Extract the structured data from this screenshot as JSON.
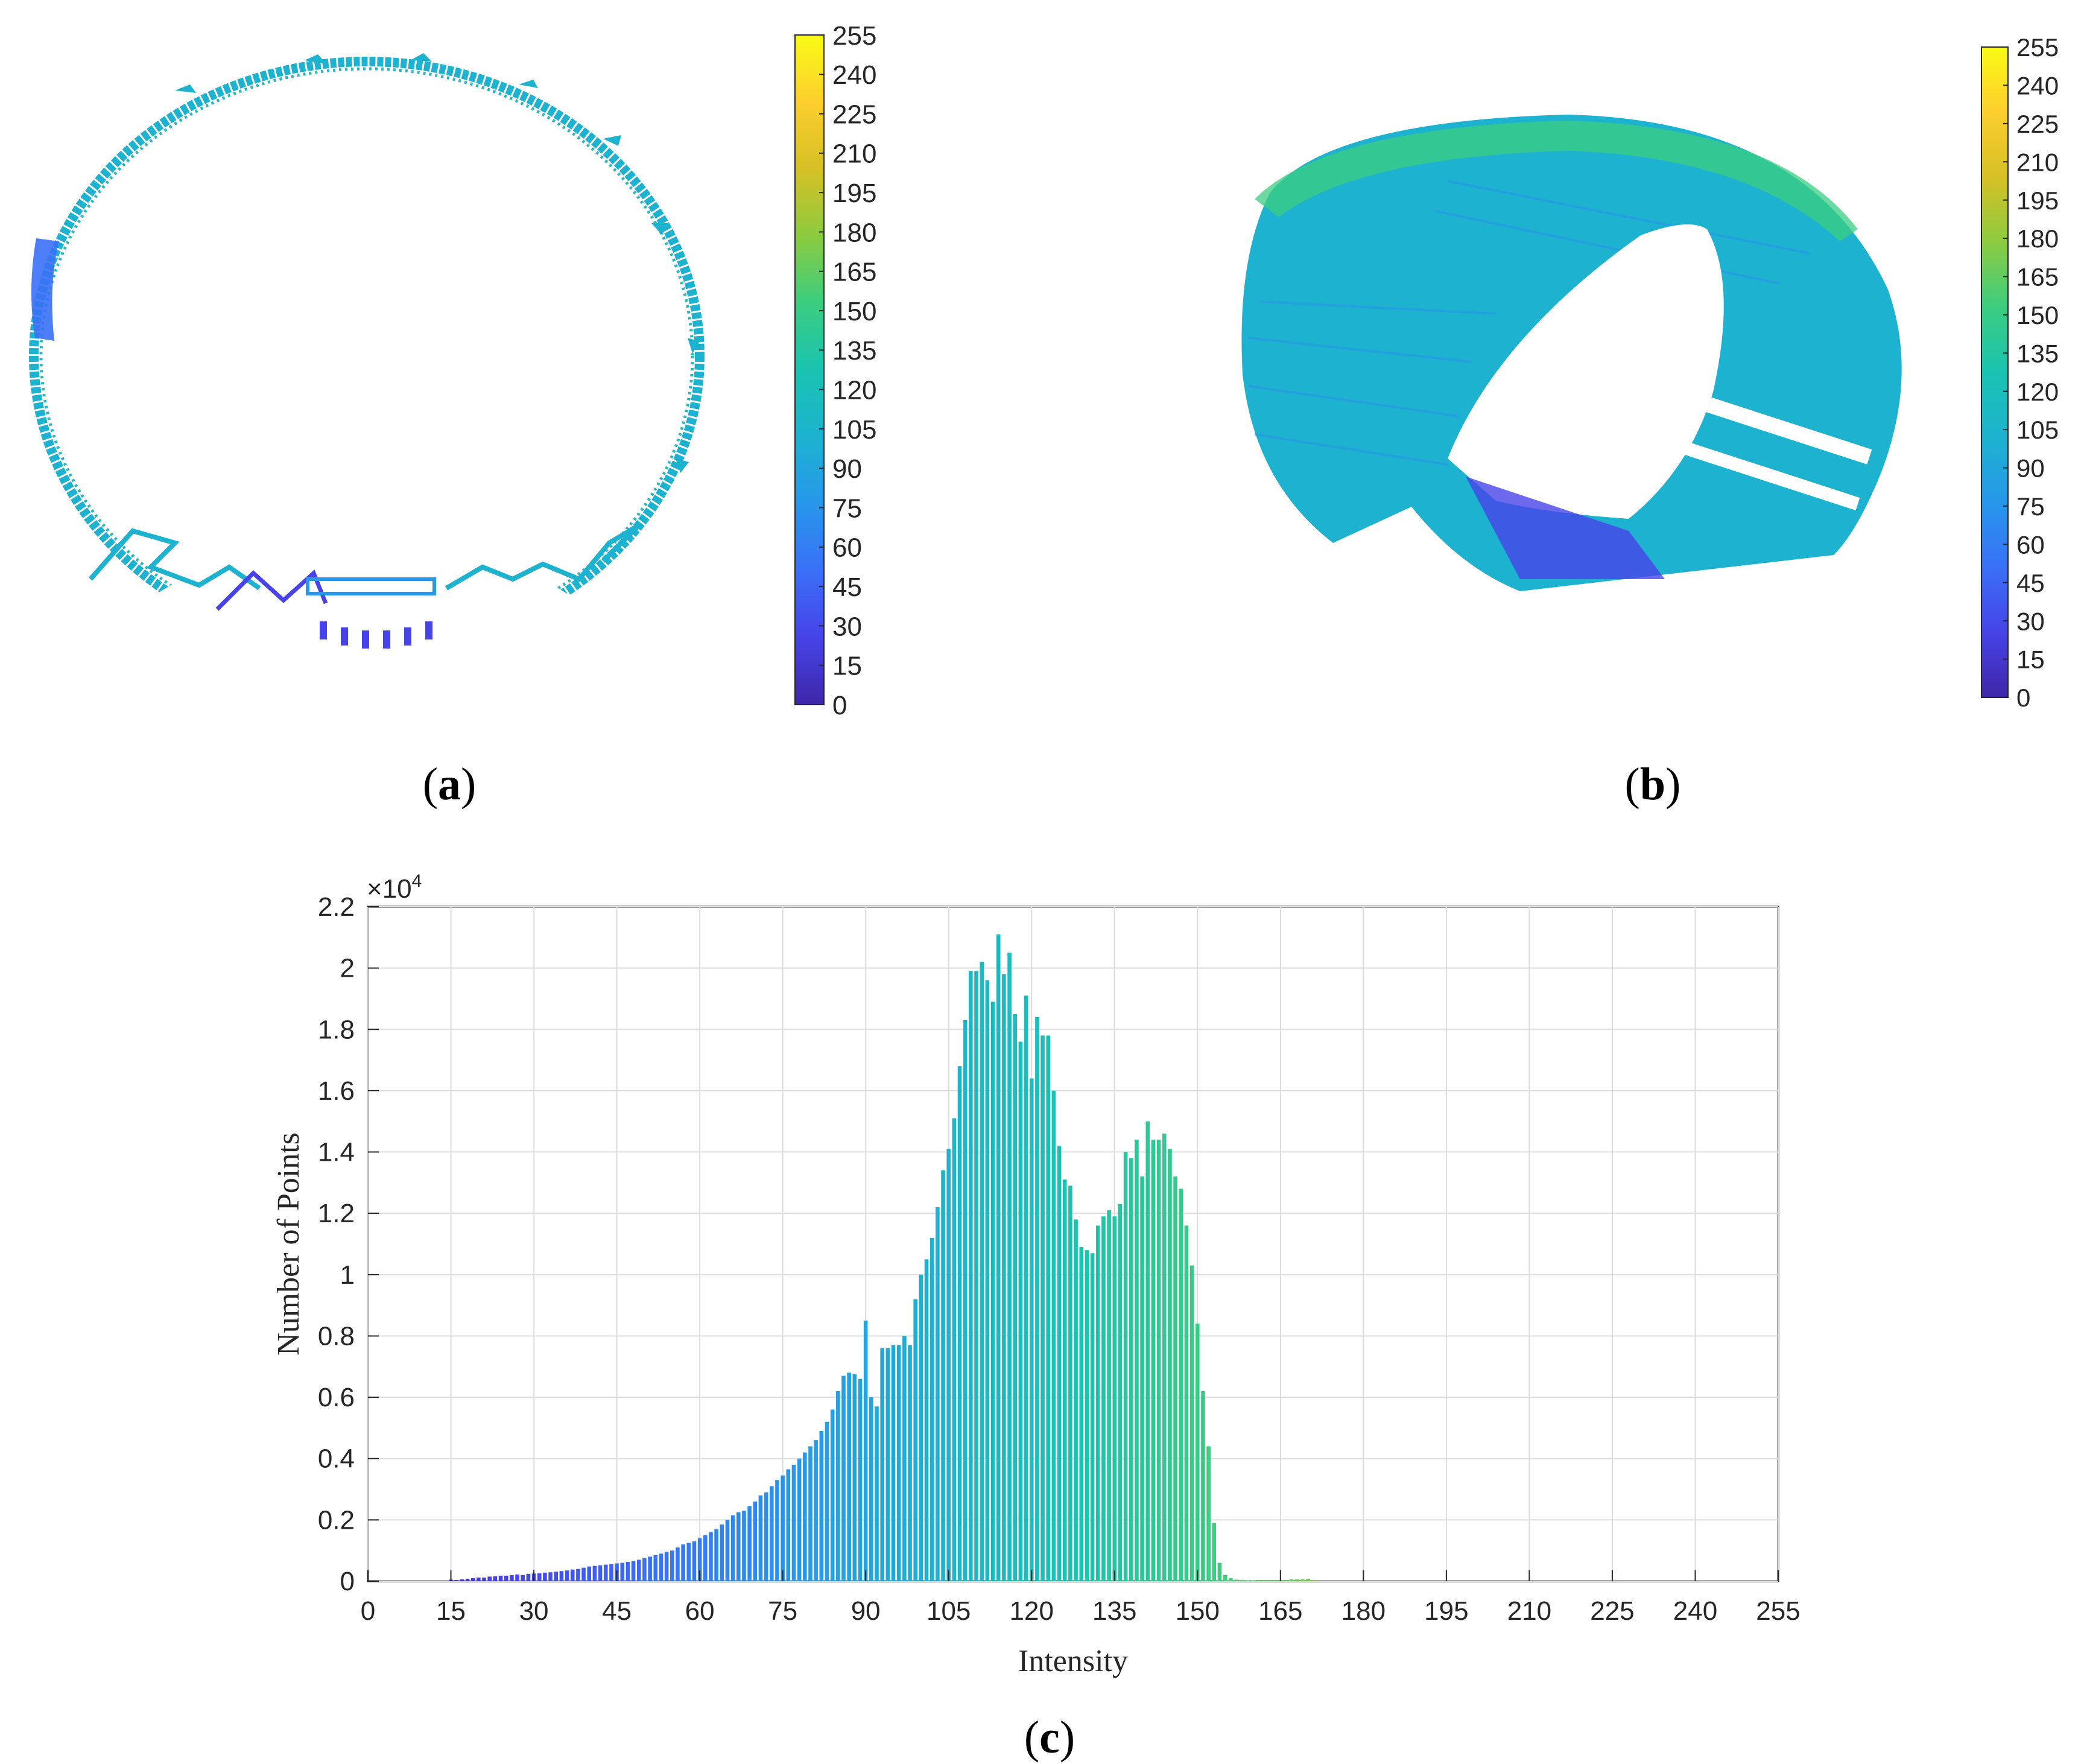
{
  "panels": {
    "a": {
      "label": "(a)",
      "label_letter": "a"
    },
    "b": {
      "label": "(b)",
      "label_letter": "b"
    },
    "c": {
      "label": "(c)",
      "label_letter": "c"
    }
  },
  "colorbar": {
    "ticks": [
      "255",
      "240",
      "225",
      "210",
      "195",
      "180",
      "165",
      "150",
      "135",
      "120",
      "105",
      "90",
      "75",
      "60",
      "45",
      "30",
      "15",
      "0"
    ],
    "colormap": [
      "#3e26a8",
      "#4743e8",
      "#3a70f7",
      "#2797eb",
      "#1db2cf",
      "#19c3b1",
      "#3bcd80",
      "#8ccb3f",
      "#d6c025",
      "#fcce2e",
      "#f9fb14"
    ]
  },
  "chart_data": {
    "type": "bar",
    "title": "",
    "xlabel": "Intensity",
    "ylabel": "Number of Points",
    "y_multiplier_label": "×10",
    "y_multiplier_exponent": "4",
    "xlim": [
      0,
      255
    ],
    "ylim": [
      0,
      2.2
    ],
    "grid": true,
    "x_ticks": [
      "0",
      "15",
      "30",
      "45",
      "60",
      "75",
      "90",
      "105",
      "120",
      "135",
      "150",
      "165",
      "180",
      "195",
      "210",
      "225",
      "240",
      "255"
    ],
    "y_ticks": [
      "0",
      "0.2",
      "0.4",
      "0.6",
      "0.8",
      "1",
      "1.2",
      "1.4",
      "1.6",
      "1.8",
      "2",
      "2.2"
    ],
    "y_unit_note": "values in units of 10^4 points",
    "bins_start": 15,
    "values": [
      0.005,
      0.004,
      0.006,
      0.008,
      0.01,
      0.012,
      0.012,
      0.015,
      0.016,
      0.018,
      0.018,
      0.02,
      0.022,
      0.02,
      0.024,
      0.025,
      0.026,
      0.028,
      0.029,
      0.031,
      0.033,
      0.035,
      0.038,
      0.04,
      0.044,
      0.048,
      0.05,
      0.052,
      0.054,
      0.056,
      0.058,
      0.06,
      0.063,
      0.066,
      0.07,
      0.075,
      0.08,
      0.085,
      0.09,
      0.096,
      0.1,
      0.11,
      0.12,
      0.125,
      0.13,
      0.14,
      0.15,
      0.16,
      0.17,
      0.185,
      0.2,
      0.215,
      0.225,
      0.23,
      0.245,
      0.26,
      0.28,
      0.29,
      0.31,
      0.33,
      0.345,
      0.365,
      0.38,
      0.4,
      0.42,
      0.44,
      0.46,
      0.49,
      0.52,
      0.56,
      0.62,
      0.67,
      0.68,
      0.675,
      0.66,
      0.85,
      0.6,
      0.57,
      0.76,
      0.76,
      0.77,
      0.77,
      0.8,
      0.77,
      0.92,
      1.0,
      1.05,
      1.12,
      1.22,
      1.34,
      1.41,
      1.51,
      1.68,
      1.83,
      1.99,
      1.99,
      2.02,
      1.96,
      1.89,
      2.11,
      1.98,
      2.05,
      1.85,
      1.76,
      1.91,
      1.64,
      1.84,
      1.78,
      1.78,
      1.6,
      1.42,
      1.31,
      1.29,
      1.18,
      1.09,
      1.08,
      1.07,
      1.16,
      1.19,
      1.21,
      1.19,
      1.23,
      1.4,
      1.38,
      1.44,
      1.32,
      1.5,
      1.44,
      1.44,
      1.46,
      1.41,
      1.32,
      1.28,
      1.16,
      1.03,
      0.84,
      0.62,
      0.44,
      0.19,
      0.06,
      0.02,
      0.01,
      0.005,
      0.004,
      0.003,
      0.003,
      0.002,
      0.002,
      0.002,
      0.002,
      0.002,
      0.002,
      0.006,
      0.006,
      0.006,
      0.008,
      0.004
    ]
  }
}
